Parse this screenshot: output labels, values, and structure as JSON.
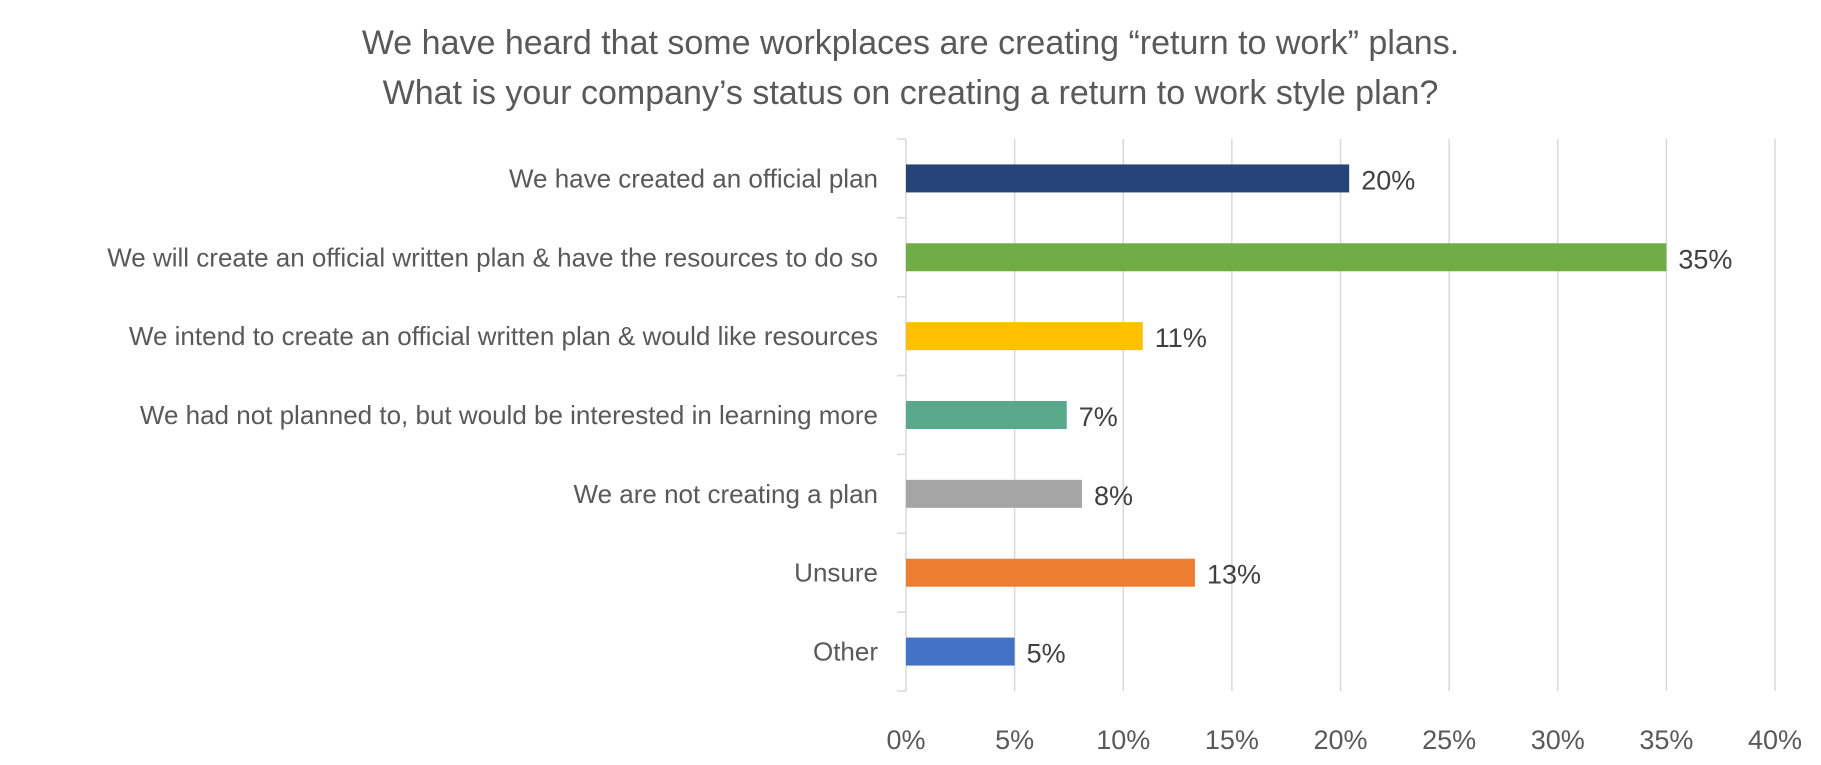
{
  "chart_data": {
    "type": "bar",
    "orientation": "horizontal",
    "title": "We have heard that some workplaces are creating “return to work” plans.",
    "subtitle": "What is your company’s status on creating a return to work style plan?",
    "categories": [
      "We have created an official plan",
      "We will create an official written plan & have the resources to do so",
      "We intend to create an official written plan & would like resources",
      "We had not planned to, but would be interested in learning more",
      "We are not creating a plan",
      "Unsure",
      "Other"
    ],
    "values": [
      20.4,
      35,
      10.9,
      7.4,
      8.1,
      13.3,
      5
    ],
    "data_labels": [
      "20%",
      "35%",
      "11%",
      "7%",
      "8%",
      "13%",
      "5%"
    ],
    "colors": [
      "#264478",
      "#70AD47",
      "#FFC000",
      "#5BA98B",
      "#A5A5A5",
      "#ED7D31",
      "#4472C4"
    ],
    "xlim": [
      0,
      40
    ],
    "x_ticks": [
      0,
      5,
      10,
      15,
      20,
      25,
      30,
      35,
      40
    ],
    "x_tick_labels": [
      "0%",
      "5%",
      "10%",
      "15%",
      "20%",
      "25%",
      "30%",
      "35%",
      "40%"
    ],
    "xlabel": "",
    "ylabel": "",
    "grid": true,
    "legend": "none"
  }
}
